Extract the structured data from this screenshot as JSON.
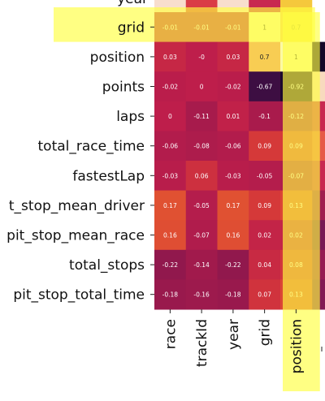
{
  "chart_data": {
    "type": "heatmap",
    "partial_top_row_label": "year",
    "rows": [
      "grid",
      "position",
      "points",
      "laps",
      "total_race_time",
      "fastestLap",
      "pit_stop_mean_driver",
      "pit_stop_mean_race",
      "total_stops",
      "pit_stop_total_time"
    ],
    "row_labels_shown": [
      "grid",
      "position",
      "points",
      "laps",
      "total_race_time",
      "fastestLap",
      "t_stop_mean_driver",
      "pit_stop_mean_race",
      "total_stops",
      "pit_stop_total_time"
    ],
    "columns": [
      "race",
      "trackId",
      "year",
      "grid",
      "position"
    ],
    "values": [
      [
        "-0.01",
        "-0.01",
        "-0.01",
        "1",
        "0.7"
      ],
      [
        "0.03",
        "-0",
        "0.03",
        "0.7",
        "1"
      ],
      [
        "-0.02",
        "0",
        "-0.02",
        "-0.67",
        "-0.92"
      ],
      [
        "0",
        "-0.11",
        "0.01",
        "-0.1",
        "-0.12"
      ],
      [
        "-0.06",
        "-0.08",
        "-0.06",
        "0.09",
        "0.09"
      ],
      [
        "-0.03",
        "0.06",
        "-0.03",
        "-0.05",
        "-0.07"
      ],
      [
        "0.17",
        "-0.05",
        "0.17",
        "0.09",
        "0.13"
      ],
      [
        "0.16",
        "-0.07",
        "0.16",
        "0.02",
        "0.02"
      ],
      [
        "-0.22",
        "-0.14",
        "-0.22",
        "0.04",
        "0.08"
      ],
      [
        "-0.18",
        "-0.16",
        "-0.18",
        "0.07",
        "0.13"
      ]
    ],
    "colormap": "inferno-like (dark purple = -1, magenta ~ 0, yellow = 1)",
    "highlight": {
      "row": "grid",
      "column": "position",
      "color": "#ffff40",
      "opacity": 0.65
    },
    "xlabel": "",
    "ylabel": "",
    "title": ""
  }
}
